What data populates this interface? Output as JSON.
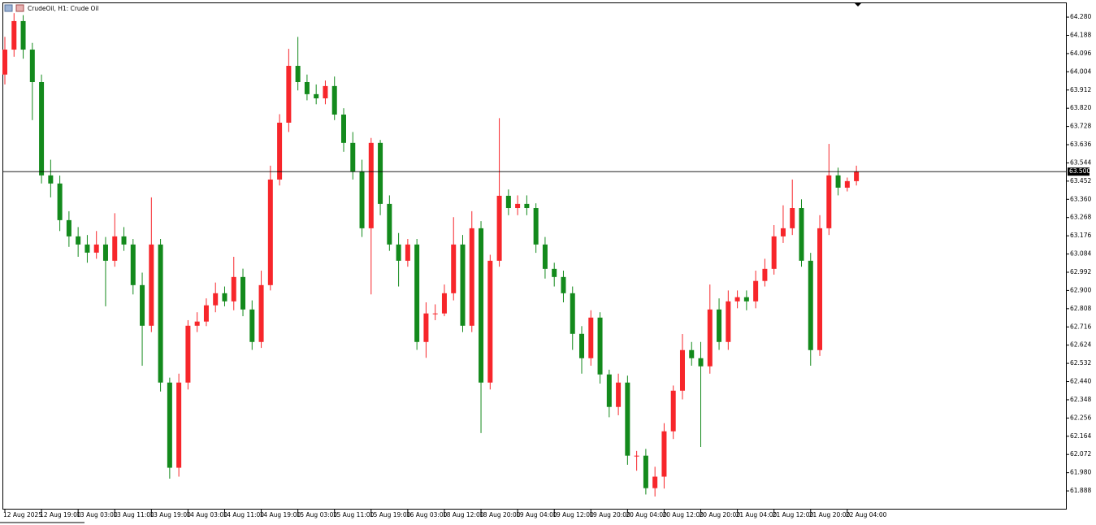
{
  "chart_data": {
    "type": "candlestick",
    "title": "CrudeOil, H1:  Crude Oil",
    "up_color": "#f7262b",
    "down_color": "#138a1c",
    "categories": [
      "12 Aug 2025",
      null,
      null,
      null,
      "12 Aug 19:00",
      null,
      null,
      null,
      "13 Aug 03:00",
      null,
      null,
      null,
      "13 Aug 11:00",
      null,
      null,
      null,
      "13 Aug 19:00",
      null,
      null,
      null,
      "14 Aug 03:00",
      null,
      null,
      null,
      "14 Aug 11:00",
      null,
      null,
      null,
      "14 Aug 19:00",
      null,
      null,
      null,
      "15 Aug 03:00",
      null,
      null,
      null,
      "15 Aug 11:00",
      null,
      null,
      null,
      "15 Aug 19:00",
      null,
      null,
      null,
      "16 Aug 03:00",
      null,
      null,
      null,
      "18 Aug 12:00",
      null,
      null,
      null,
      "18 Aug 20:00",
      null,
      null,
      null,
      "19 Aug 04:00",
      null,
      null,
      null,
      "19 Aug 12:00",
      null,
      null,
      null,
      "19 Aug 20:00",
      null,
      null,
      null,
      "20 Aug 04:00",
      null,
      null,
      null,
      "20 Aug 12:00",
      null,
      null,
      null,
      "20 Aug 20:00",
      null,
      null,
      null,
      "21 Aug 04:00",
      null,
      null,
      null,
      "21 Aug 12:00",
      null,
      null,
      null,
      "21 Aug 20:00",
      null,
      null,
      null,
      "22 Aug 04:00",
      null
    ],
    "open": [
      63.99,
      64.116,
      64.26,
      64.116,
      63.952,
      63.481,
      63.44,
      63.255,
      63.173,
      63.132,
      63.091,
      63.132,
      63.05,
      63.173,
      63.132,
      62.927,
      62.722,
      63.132,
      62.435,
      62.005,
      62.435,
      62.722,
      62.743,
      62.825,
      62.886,
      62.845,
      62.968,
      62.804,
      62.64,
      62.927,
      63.46,
      63.747,
      64.034,
      63.952,
      63.891,
      63.87,
      63.932,
      63.788,
      63.645,
      63.501,
      63.214,
      63.645,
      63.337,
      63.132,
      63.05,
      63.132,
      62.64,
      62.784,
      62.784,
      62.886,
      63.132,
      62.722,
      63.214,
      62.435,
      63.05,
      63.378,
      63.316,
      63.337,
      63.316,
      63.132,
      63.009,
      62.968,
      62.886,
      62.681,
      62.558,
      62.763,
      62.476,
      62.312,
      62.435,
      62.066,
      62.066,
      61.902,
      61.96,
      62.189,
      62.394,
      62.599,
      62.558,
      62.517,
      62.804,
      62.64,
      62.845,
      62.866,
      62.845,
      62.948,
      63.009,
      63.173,
      63.214,
      63.316,
      63.05,
      62.599,
      63.214,
      63.481,
      63.419,
      63.452
    ],
    "high": [
      64.18,
      64.3,
      64.29,
      64.15,
      63.99,
      63.56,
      63.48,
      63.3,
      63.22,
      63.18,
      63.2,
      63.17,
      63.29,
      63.22,
      63.16,
      62.99,
      63.37,
      63.16,
      62.46,
      62.48,
      62.75,
      62.79,
      62.86,
      62.94,
      62.92,
      63.07,
      63.01,
      62.85,
      63.0,
      63.53,
      63.79,
      64.12,
      64.18,
      63.99,
      63.94,
      63.96,
      63.98,
      63.82,
      63.7,
      63.56,
      63.67,
      63.66,
      63.38,
      63.19,
      63.16,
      63.16,
      62.84,
      62.83,
      62.93,
      63.27,
      63.18,
      63.3,
      63.25,
      63.08,
      63.77,
      63.41,
      63.38,
      63.38,
      63.34,
      63.17,
      63.04,
      63.0,
      62.92,
      62.72,
      62.8,
      62.79,
      62.5,
      62.48,
      62.47,
      62.09,
      62.1,
      62.01,
      62.23,
      62.42,
      62.68,
      62.64,
      62.64,
      62.93,
      62.86,
      62.9,
      62.9,
      62.9,
      63.0,
      63.06,
      63.23,
      63.33,
      63.46,
      63.36,
      63.09,
      63.28,
      63.64,
      63.52,
      63.47,
      63.53
    ],
    "low": [
      63.94,
      64.08,
      64.07,
      63.76,
      63.44,
      63.37,
      63.2,
      63.12,
      63.07,
      63.04,
      63.06,
      62.82,
      63.02,
      63.1,
      62.88,
      62.52,
      62.69,
      62.39,
      61.95,
      61.96,
      62.4,
      62.69,
      62.72,
      62.79,
      62.82,
      62.8,
      62.77,
      62.6,
      62.61,
      62.9,
      63.43,
      63.7,
      63.91,
      63.86,
      63.84,
      63.84,
      63.76,
      63.6,
      63.46,
      63.17,
      62.88,
      63.28,
      63.1,
      62.92,
      63.02,
      62.6,
      62.56,
      62.75,
      62.77,
      62.85,
      62.69,
      62.69,
      62.18,
      62.4,
      63.02,
      63.28,
      63.28,
      63.28,
      63.09,
      62.96,
      62.92,
      62.84,
      62.6,
      62.48,
      62.52,
      62.43,
      62.26,
      62.27,
      62.02,
      61.99,
      61.87,
      61.86,
      61.9,
      62.15,
      62.35,
      62.52,
      62.11,
      62.48,
      62.6,
      62.6,
      62.81,
      62.8,
      62.81,
      62.92,
      62.98,
      63.14,
      63.18,
      63.02,
      62.52,
      62.57,
      63.18,
      63.38,
      63.4,
      63.43
    ],
    "close": [
      64.116,
      64.26,
      64.116,
      63.952,
      63.481,
      63.44,
      63.255,
      63.173,
      63.132,
      63.091,
      63.132,
      63.05,
      63.173,
      63.132,
      62.927,
      62.722,
      63.132,
      62.435,
      62.005,
      62.435,
      62.722,
      62.743,
      62.825,
      62.886,
      62.845,
      62.968,
      62.804,
      62.64,
      62.927,
      63.46,
      63.747,
      64.034,
      63.952,
      63.891,
      63.87,
      63.932,
      63.788,
      63.645,
      63.501,
      63.214,
      63.645,
      63.337,
      63.132,
      63.05,
      63.132,
      62.64,
      62.784,
      62.784,
      62.886,
      63.132,
      62.722,
      63.214,
      62.435,
      63.05,
      63.378,
      63.316,
      63.337,
      63.316,
      63.132,
      63.009,
      62.968,
      62.886,
      62.681,
      62.558,
      62.763,
      62.476,
      62.312,
      62.435,
      62.066,
      62.066,
      61.902,
      61.96,
      62.189,
      62.394,
      62.599,
      62.558,
      62.517,
      62.804,
      62.64,
      62.845,
      62.866,
      62.845,
      62.948,
      63.009,
      63.173,
      63.214,
      63.316,
      63.05,
      62.599,
      63.214,
      63.481,
      63.419,
      63.452,
      63.5
    ],
    "current_price": {
      "value": 63.5,
      "label": "63.500"
    },
    "ylim": [
      61.798,
      64.35
    ],
    "yticks": [
      {
        "value": 64.28,
        "label": "64.280"
      },
      64.188,
      64.096,
      64.004,
      63.912,
      {
        "value": 63.82,
        "label": "63.820"
      },
      63.728,
      63.636,
      63.544,
      63.452,
      {
        "value": 63.36,
        "label": "63.360"
      },
      63.268,
      63.176,
      63.084,
      62.992,
      {
        "value": 62.9,
        "label": "62.900"
      },
      62.808,
      62.716,
      62.624,
      62.532,
      {
        "value": 62.44,
        "label": "62.440"
      },
      62.348,
      62.256,
      62.164,
      62.072,
      {
        "value": 61.98,
        "label": "61.980"
      },
      61.888
    ]
  }
}
